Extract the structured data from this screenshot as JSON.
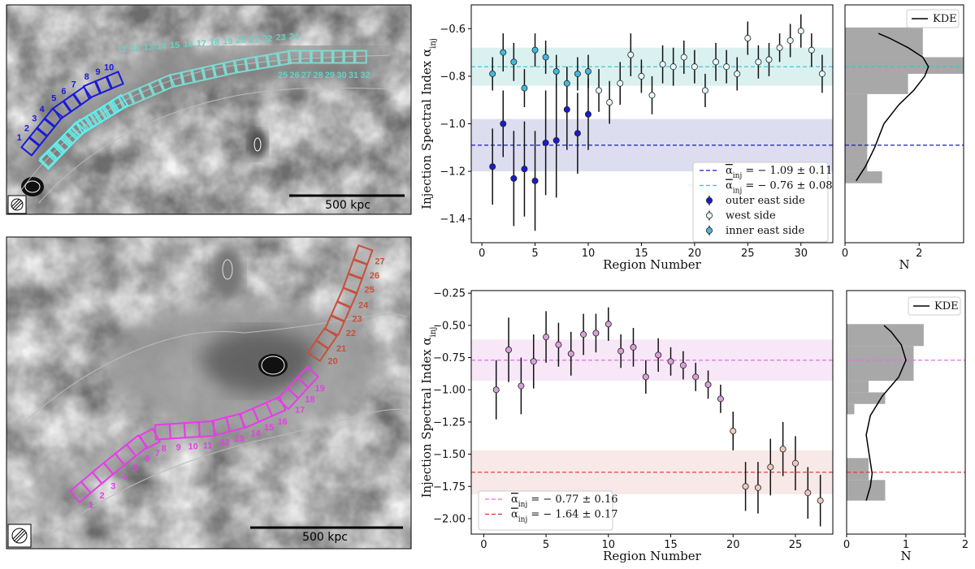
{
  "chart_data": [
    {
      "id": "map_top",
      "type": "image",
      "description_labels": {
        "scale_bar": "500 kpc",
        "outer_east_regions": [
          "1",
          "2",
          "3",
          "4",
          "5",
          "6",
          "7",
          "8",
          "9",
          "10"
        ],
        "west_regions_left": [
          "11",
          "12",
          "13",
          "14",
          "15",
          "16",
          "17",
          "18",
          "19",
          "20",
          "21",
          "22",
          "23",
          "24"
        ],
        "west_regions_right": [
          "25",
          "26",
          "27",
          "28",
          "29",
          "30",
          "31",
          "32"
        ]
      },
      "colors": {
        "outer_east": "#1a1adb",
        "west": "#7fd8d0",
        "inner_east": "#5ef0f0"
      }
    },
    {
      "id": "map_bottom",
      "type": "image",
      "description_labels": {
        "scale_bar": "500 kpc",
        "magenta_regions": [
          "1",
          "2",
          "3",
          "4",
          "5",
          "6",
          "7",
          "8",
          "9",
          "10",
          "11",
          "12",
          "13",
          "14",
          "15",
          "16",
          "17",
          "18",
          "19"
        ],
        "red_regions": [
          "20",
          "21",
          "22",
          "23",
          "24",
          "25",
          "26",
          "27"
        ]
      },
      "colors": {
        "magenta": "#e83ce8",
        "red": "#c8503c"
      }
    },
    {
      "id": "scatter_top",
      "type": "scatter",
      "xlabel": "Region Number",
      "ylabel": "Injection Spectral Index α_inj",
      "xlim": [
        -1,
        33
      ],
      "ylim": [
        -1.5,
        -0.5
      ],
      "xticks": [
        "0",
        "5",
        "10",
        "15",
        "20",
        "25",
        "30"
      ],
      "yticks": [
        "-1.4",
        "-1.2",
        "-1.0",
        "-0.8",
        "-0.6"
      ],
      "bands": [
        {
          "mean": -1.09,
          "err": 0.11,
          "color": "#1a1acc",
          "fill": "#d9d9ee"
        },
        {
          "mean": -0.76,
          "err": 0.08,
          "color": "#33c0dd",
          "fill": "#d6f0ee"
        }
      ],
      "legend": [
        {
          "label": "α̅_inj = −1.09 ± 0.11",
          "text_main": "αinj",
          "text_rest": " = − 1.09 ± 0.11",
          "kind": "dash",
          "color": "#1a1acc"
        },
        {
          "label": "α̅_inj = −0.76 ± 0.08",
          "text_main": "αinj",
          "text_rest": " = − 0.76 ± 0.08",
          "kind": "dash",
          "color": "#33c0dd"
        },
        {
          "label": "outer east side",
          "kind": "point",
          "color": "#1a1acc"
        },
        {
          "label": "west side",
          "kind": "point",
          "color": "#e6f8ff"
        },
        {
          "label": "inner east side",
          "kind": "point",
          "color": "#44b8dd"
        }
      ],
      "series": [
        {
          "name": "outer east side",
          "color": "#1a1acc",
          "x": [
            1,
            2,
            3,
            4,
            5,
            6,
            7,
            8,
            9,
            10
          ],
          "y": [
            -1.18,
            -1.0,
            -1.23,
            -1.19,
            -1.24,
            -1.08,
            -1.07,
            -0.94,
            -1.04,
            -0.96
          ],
          "err": [
            0.16,
            0.14,
            0.2,
            0.2,
            0.21,
            0.22,
            0.24,
            0.17,
            0.17,
            0.15
          ]
        },
        {
          "name": "west side",
          "color": "#e6f8ff",
          "x": [
            11,
            12,
            13,
            14,
            15,
            16,
            17,
            18,
            19,
            20,
            21,
            22,
            23,
            24,
            25,
            26,
            27,
            28,
            29,
            30,
            31,
            32
          ],
          "y": [
            -0.86,
            -0.91,
            -0.83,
            -0.71,
            -0.8,
            -0.88,
            -0.75,
            -0.76,
            -0.72,
            -0.76,
            -0.86,
            -0.74,
            -0.76,
            -0.79,
            -0.64,
            -0.74,
            -0.73,
            -0.68,
            -0.65,
            -0.61,
            -0.69,
            -0.79
          ],
          "err": [
            0.09,
            0.09,
            0.09,
            0.09,
            0.07,
            0.08,
            0.08,
            0.08,
            0.07,
            0.07,
            0.07,
            0.08,
            0.07,
            0.07,
            0.07,
            0.07,
            0.07,
            0.06,
            0.07,
            0.07,
            0.07,
            0.08
          ]
        },
        {
          "name": "inner east side",
          "color": "#44b8dd",
          "x": [
            1,
            2,
            3,
            4,
            5,
            6,
            7,
            8,
            9,
            10
          ],
          "y": [
            -0.79,
            -0.7,
            -0.74,
            -0.85,
            -0.69,
            -0.72,
            -0.78,
            -0.83,
            -0.79,
            -0.78
          ],
          "err": [
            0.07,
            0.08,
            0.08,
            0.08,
            0.07,
            0.07,
            0.07,
            0.07,
            0.07,
            0.07
          ]
        }
      ]
    },
    {
      "id": "hist_top",
      "type": "bar",
      "orientation": "horizontal",
      "xlabel": "N",
      "xlim": [
        0,
        3.2
      ],
      "ylim": [
        -1.5,
        -0.5
      ],
      "xticks": [
        "0",
        "2"
      ],
      "legend": [
        {
          "label": "KDE",
          "kind": "line",
          "color": "#000000"
        }
      ],
      "bins": [
        {
          "lo": -1.25,
          "hi": -1.2,
          "count": 1
        },
        {
          "lo": -1.2,
          "hi": -0.875,
          "count": 0.6
        },
        {
          "lo": -0.875,
          "hi": -0.79,
          "count": 1.7
        },
        {
          "lo": -0.79,
          "hi": -0.72,
          "count": 3.2
        },
        {
          "lo": -0.72,
          "hi": -0.595,
          "count": 2.1
        }
      ],
      "hlines": [
        {
          "y": -1.09,
          "color": "#1a1acc"
        },
        {
          "y": -0.76,
          "color": "#33c0dd"
        }
      ],
      "kde": [
        [
          -1.24,
          0.3
        ],
        [
          -1.18,
          0.55
        ],
        [
          -1.1,
          0.8
        ],
        [
          -1.0,
          1.05
        ],
        [
          -0.92,
          1.45
        ],
        [
          -0.86,
          1.85
        ],
        [
          -0.8,
          2.15
        ],
        [
          -0.76,
          2.25
        ],
        [
          -0.72,
          2.1
        ],
        [
          -0.68,
          1.7
        ],
        [
          -0.64,
          1.2
        ],
        [
          -0.62,
          0.9
        ]
      ]
    },
    {
      "id": "scatter_bottom",
      "type": "scatter",
      "xlabel": "Region Number",
      "ylabel": "Injection Spectral Index α_inj",
      "xlim": [
        -1,
        28
      ],
      "ylim": [
        -2.12,
        -0.23
      ],
      "xticks": [
        "0",
        "5",
        "10",
        "15",
        "20",
        "25"
      ],
      "yticks": [
        "-2.00",
        "-1.75",
        "-1.50",
        "-1.25",
        "-1.00",
        "-0.75",
        "-0.50",
        "-0.25"
      ],
      "bands": [
        {
          "mean": -0.77,
          "err": 0.16,
          "color": "#e070e0",
          "fill": "#f6e4f6"
        },
        {
          "mean": -1.64,
          "err": 0.17,
          "color": "#dd3030",
          "fill": "#f7e6e6"
        }
      ],
      "legend": [
        {
          "label": "α̅_inj = −0.77 ± 0.16",
          "text_main": "αinj",
          "text_rest": " = − 0.77 ± 0.16",
          "kind": "dash",
          "color": "#e070e0"
        },
        {
          "label": "α̅_inj = −1.64 ± 0.17",
          "text_main": "αinj",
          "text_rest": " = − 1.64 ± 0.17",
          "kind": "dash",
          "color": "#dd3030"
        }
      ],
      "series": [
        {
          "name": "magenta regions",
          "color": "#d9a0d9",
          "x": [
            1,
            2,
            3,
            4,
            5,
            6,
            7,
            8,
            9,
            10,
            11,
            12,
            13,
            14,
            15,
            16,
            17,
            18,
            19
          ],
          "y": [
            -1.0,
            -0.69,
            -0.97,
            -0.78,
            -0.59,
            -0.65,
            -0.72,
            -0.57,
            -0.56,
            -0.49,
            -0.7,
            -0.67,
            -0.9,
            -0.73,
            -0.78,
            -0.81,
            -0.9,
            -0.96,
            -1.07
          ],
          "err": [
            0.23,
            0.25,
            0.22,
            0.21,
            0.2,
            0.17,
            0.17,
            0.16,
            0.15,
            0.13,
            0.13,
            0.15,
            0.13,
            0.13,
            0.11,
            0.11,
            0.11,
            0.11,
            0.11
          ]
        },
        {
          "name": "red regions",
          "color": "#f0c8c0",
          "x": [
            20,
            21,
            22,
            23,
            24,
            25,
            26,
            27
          ],
          "y": [
            -1.32,
            -1.75,
            -1.76,
            -1.6,
            -1.46,
            -1.57,
            -1.8,
            -1.86
          ],
          "err": [
            0.15,
            0.19,
            0.2,
            0.22,
            0.21,
            0.21,
            0.2,
            0.2
          ]
        }
      ]
    },
    {
      "id": "hist_bottom",
      "type": "bar",
      "orientation": "horizontal",
      "xlabel": "N",
      "xlim": [
        0,
        2
      ],
      "ylim": [
        -2.12,
        -0.23
      ],
      "xticks": [
        "0",
        "1",
        "2"
      ],
      "legend": [
        {
          "label": "KDE",
          "kind": "line",
          "color": "#000000"
        }
      ],
      "bins": [
        {
          "lo": -1.86,
          "hi": -1.7,
          "count": 0.65
        },
        {
          "lo": -1.7,
          "hi": -1.53,
          "count": 0.37
        },
        {
          "lo": -1.53,
          "hi": -1.19,
          "count": 0.0
        },
        {
          "lo": -1.19,
          "hi": -1.11,
          "count": 0.13
        },
        {
          "lo": -1.11,
          "hi": -1.02,
          "count": 0.65
        },
        {
          "lo": -1.02,
          "hi": -0.93,
          "count": 0.37
        },
        {
          "lo": -0.93,
          "hi": -0.66,
          "count": 1.13
        },
        {
          "lo": -0.66,
          "hi": -0.49,
          "count": 1.3
        }
      ],
      "hlines": [
        {
          "y": -0.77,
          "color": "#e070e0"
        },
        {
          "y": -1.64,
          "color": "#dd3030"
        }
      ],
      "kde": [
        [
          -1.86,
          0.33
        ],
        [
          -1.75,
          0.4
        ],
        [
          -1.65,
          0.43
        ],
        [
          -1.5,
          0.38
        ],
        [
          -1.35,
          0.33
        ],
        [
          -1.2,
          0.4
        ],
        [
          -1.05,
          0.6
        ],
        [
          -0.9,
          0.88
        ],
        [
          -0.77,
          1.0
        ],
        [
          -0.65,
          0.92
        ],
        [
          -0.55,
          0.75
        ],
        [
          -0.5,
          0.63
        ]
      ]
    }
  ]
}
